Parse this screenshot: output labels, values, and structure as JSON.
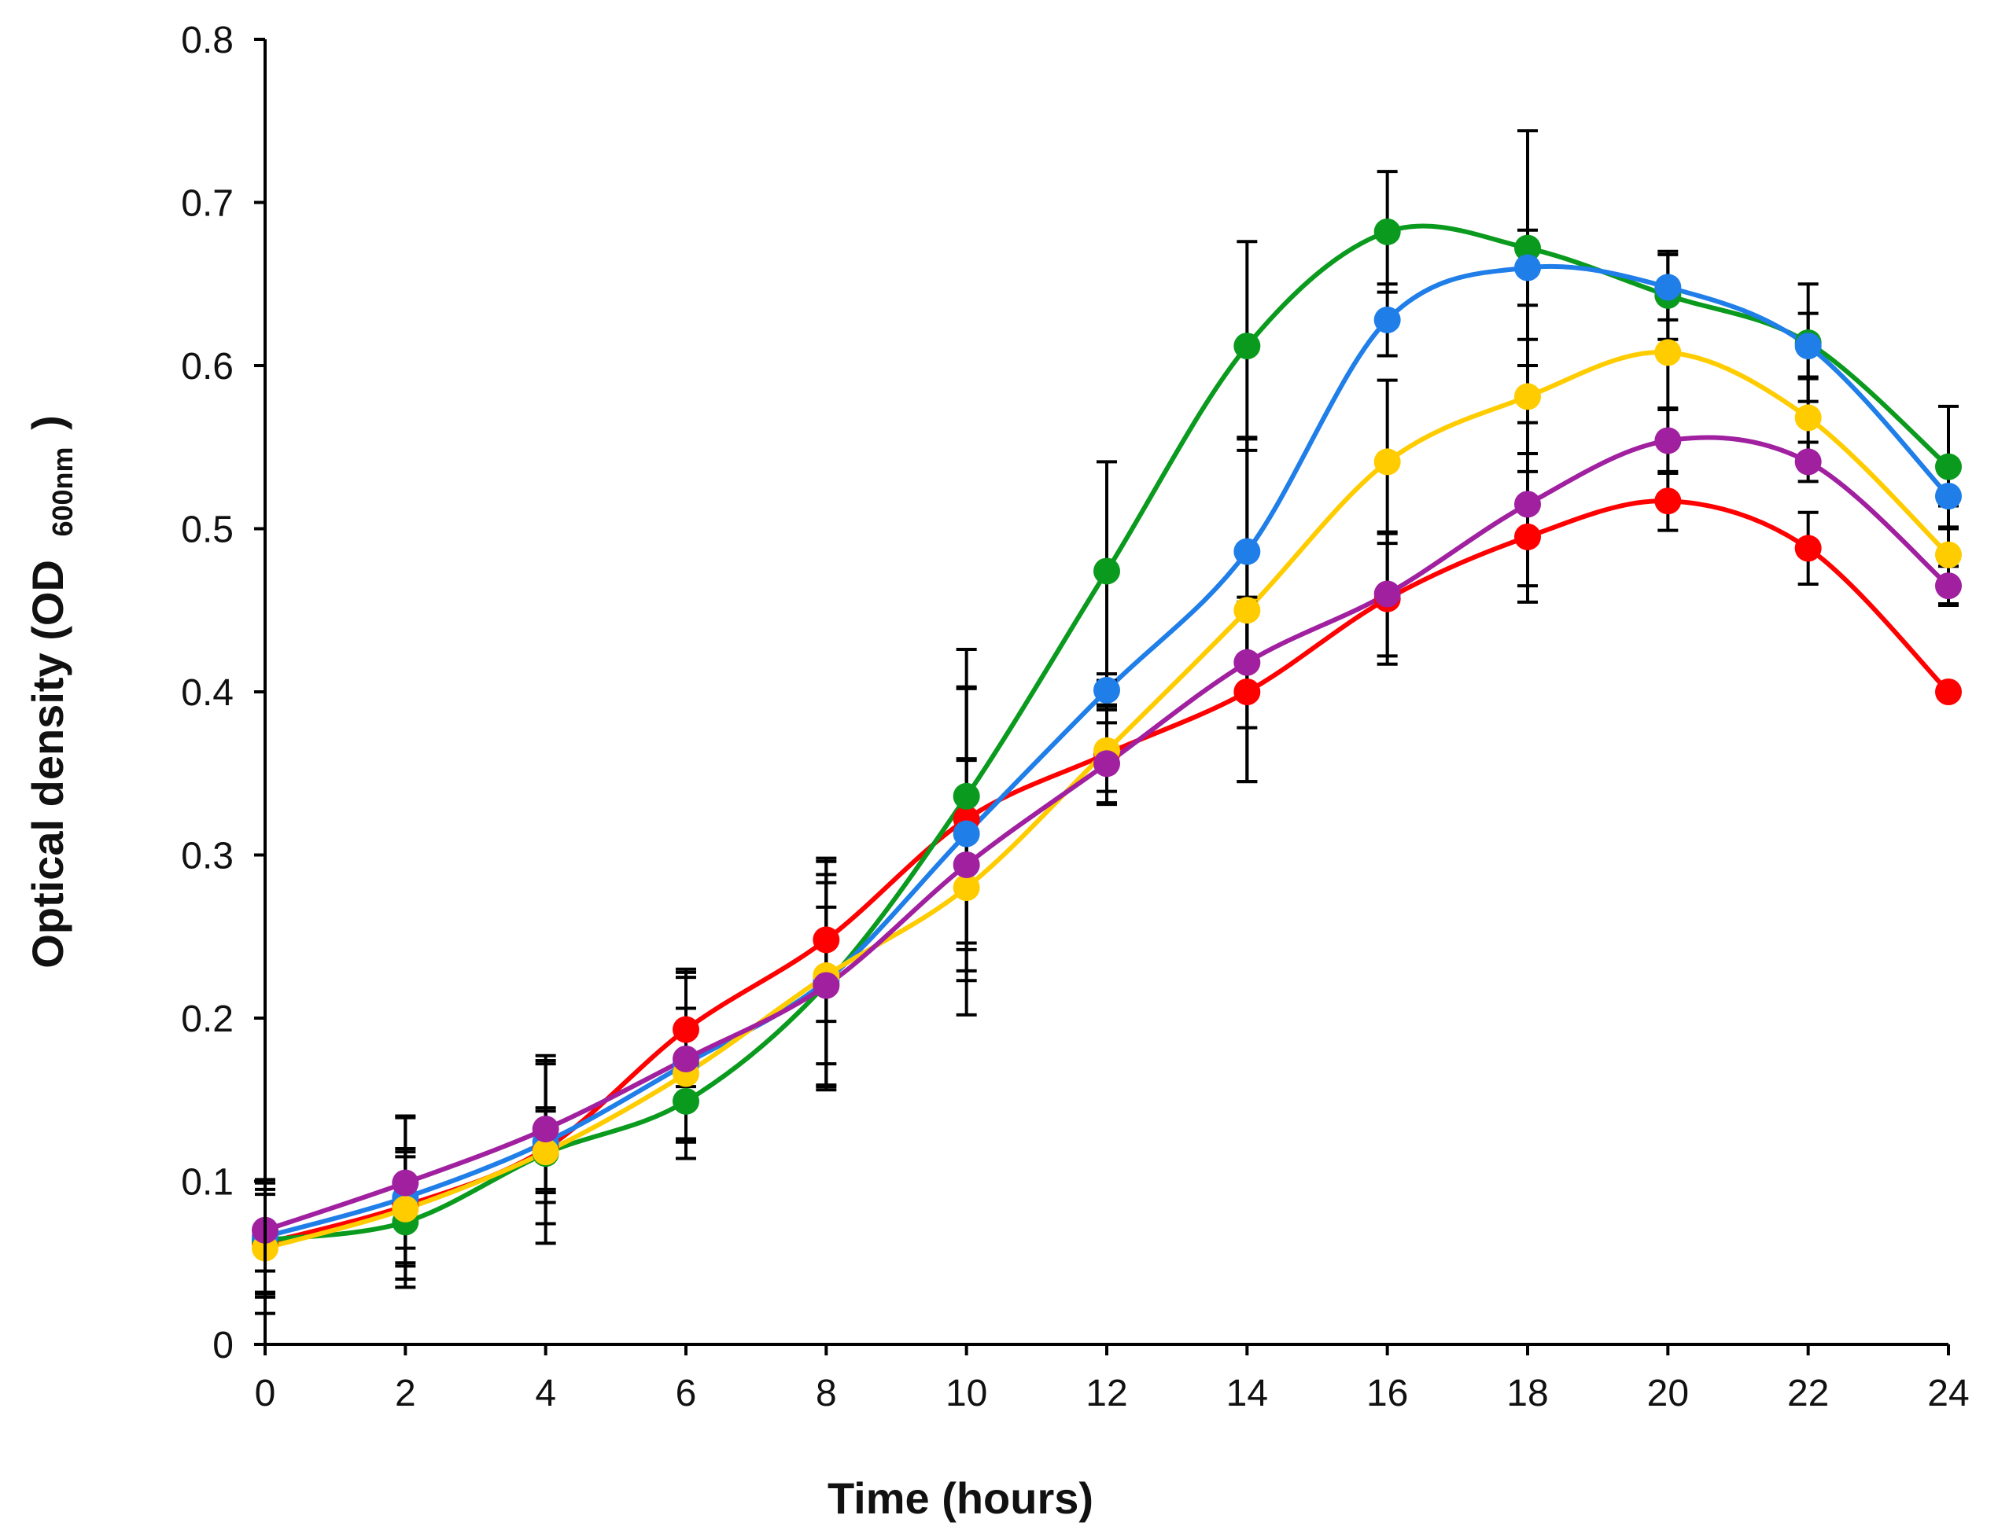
{
  "chart_data": {
    "type": "line",
    "title": "",
    "xlabel": "Time (hours)",
    "ylabel_main": "Optical density (OD",
    "ylabel_sub": "600nm",
    "ylabel_close": ")",
    "xlim": [
      0,
      24
    ],
    "ylim": [
      0,
      0.8
    ],
    "grid": false,
    "legend": "none",
    "x": [
      0,
      2,
      4,
      6,
      8,
      10,
      12,
      14,
      16,
      18,
      20,
      22,
      24
    ],
    "x_ticks": [
      0,
      2,
      4,
      6,
      8,
      10,
      12,
      14,
      16,
      18,
      20,
      22,
      24
    ],
    "x_tick_labels": [
      "0",
      "2",
      "4",
      "6",
      "8",
      "10",
      "12",
      "14",
      "16",
      "18",
      "20",
      "22",
      "24"
    ],
    "y_ticks": [
      0,
      0.1,
      0.2,
      0.3,
      0.4,
      0.5,
      0.6,
      0.7,
      0.8
    ],
    "y_tick_labels": [
      "0",
      "0.1",
      "0.2",
      "0.3",
      "0.4",
      "0.5",
      "0.6",
      "0.7",
      "0.8"
    ],
    "series": [
      {
        "name": "red",
        "color": "#ff0000",
        "values": [
          0.062,
          0.085,
          0.12,
          0.193,
          0.248,
          0.322,
          0.362,
          0.4,
          0.457,
          0.495,
          0.517,
          0.488,
          0.4
        ],
        "errors": [
          0.03,
          0.035,
          0.025,
          0.035,
          0.05,
          0.08,
          0.03,
          0.055,
          0.04,
          0.04,
          0.018,
          0.022,
          0
        ]
      },
      {
        "name": "green",
        "color": "#0a9a1e",
        "values": [
          0.064,
          0.075,
          0.117,
          0.149,
          0.221,
          0.336,
          0.474,
          0.612,
          0.682,
          0.672,
          0.643,
          0.614,
          0.538
        ],
        "errors": [
          0.035,
          0.04,
          0.055,
          0.025,
          0.062,
          0.09,
          0.067,
          0.064,
          0.037,
          0.072,
          0.027,
          0.036,
          0.037
        ]
      },
      {
        "name": "blue",
        "color": "#1f7ee8",
        "values": [
          0.066,
          0.09,
          0.124,
          0.172,
          0.223,
          0.313,
          0.401,
          0.486,
          0.628,
          0.66,
          0.648,
          0.612,
          0.52
        ],
        "errors": [
          0.035,
          0.05,
          0.05,
          0.058,
          0.065,
          0.09,
          0.01,
          0.07,
          0.022,
          0.023,
          0.02,
          0.02,
          0.02
        ]
      },
      {
        "name": "yellow",
        "color": "#ffcc00",
        "values": [
          0.059,
          0.083,
          0.118,
          0.166,
          0.226,
          0.28,
          0.364,
          0.45,
          0.541,
          0.581,
          0.608,
          0.568,
          0.484
        ],
        "errors": [
          0.04,
          0.035,
          0.025,
          0.04,
          0.07,
          0.078,
          0.025,
          0.105,
          0.05,
          0.035,
          0.035,
          0.025,
          0.03
        ]
      },
      {
        "name": "purple",
        "color": "#a020a0",
        "values": [
          0.07,
          0.099,
          0.132,
          0.175,
          0.22,
          0.294,
          0.356,
          0.418,
          0.46,
          0.515,
          0.554,
          0.541,
          0.465
        ],
        "errors": [
          0.025,
          0.04,
          0.045,
          0.05,
          0.048,
          0.065,
          0.025,
          0.04,
          0.038,
          0.05,
          0.02,
          0.012,
          0.012
        ]
      }
    ]
  }
}
